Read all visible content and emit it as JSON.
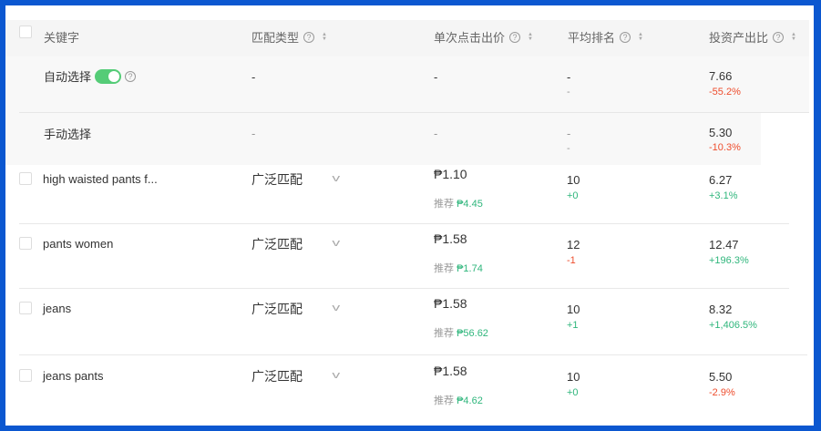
{
  "headers": {
    "keyword": "关键字",
    "match_type": "匹配类型",
    "cpc": "单次点击出价",
    "avg_rank": "平均排名",
    "roi": "投资产出比"
  },
  "auto": {
    "label": "自动选择",
    "toggle_on": true,
    "match": "-",
    "bid": "-",
    "rank": "-",
    "rank_change": "-",
    "roi": "7.66",
    "roi_change": "-55.2%"
  },
  "manual": {
    "label": "手动选择",
    "match": "-",
    "bid": "-",
    "rank": "-",
    "rank_change": "-",
    "roi": "5.30",
    "roi_change": "-10.3%"
  },
  "suggest_label": "推荐",
  "rows": [
    {
      "keyword": "high waisted pants f...",
      "match": "广泛匹配",
      "bid": "₱1.10",
      "suggest": "₱4.45",
      "rank": "10",
      "rank_change": "+0",
      "roi": "6.27",
      "roi_change": "+3.1%"
    },
    {
      "keyword": "pants women",
      "match": "广泛匹配",
      "bid": "₱1.58",
      "suggest": "₱1.74",
      "rank": "12",
      "rank_change": "-1",
      "roi": "12.47",
      "roi_change": "+196.3%"
    },
    {
      "keyword": "jeans",
      "match": "广泛匹配",
      "bid": "₱1.58",
      "suggest": "₱56.62",
      "rank": "10",
      "rank_change": "+1",
      "roi": "8.32",
      "roi_change": "+1,406.5%"
    },
    {
      "keyword": "jeans pants",
      "match": "广泛匹配",
      "bid": "₱1.58",
      "suggest": "₱4.62",
      "rank": "10",
      "rank_change": "+0",
      "roi": "5.50",
      "roi_change": "-2.9%"
    }
  ],
  "colors": {
    "positive": "#2fb67c",
    "negative": "#ee4d2d",
    "toggle": "#55cc77",
    "frame": "#0b57d0"
  }
}
